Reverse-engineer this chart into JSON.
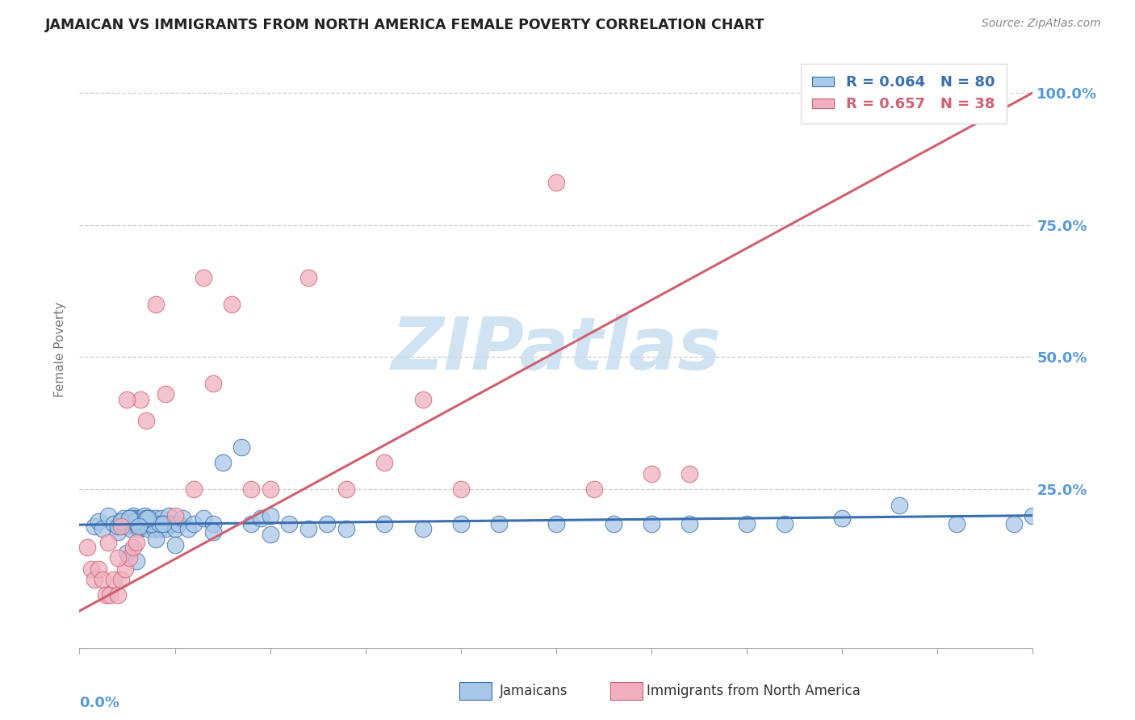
{
  "title": "JAMAICAN VS IMMIGRANTS FROM NORTH AMERICA FEMALE POVERTY CORRELATION CHART",
  "source_text": "Source: ZipAtlas.com",
  "xlim": [
    0,
    0.5
  ],
  "ylim": [
    -0.05,
    1.08
  ],
  "blue_R": 0.064,
  "blue_N": 80,
  "pink_R": 0.657,
  "pink_N": 38,
  "blue_color": "#a8c8e8",
  "pink_color": "#f0b0c0",
  "blue_line_color": "#3a6faf",
  "pink_line_color": "#d06070",
  "legend_label_blue": "Jamaicans",
  "legend_label_pink": "Immigrants from North America",
  "watermark": "ZIPatlas",
  "watermark_color": "#c8dff0",
  "grid_color": "#cccccc",
  "axis_label": "Female Poverty",
  "title_color": "#222222",
  "tick_label_color": "#5599dd",
  "blue_line_intercept": 0.183,
  "blue_line_slope": 0.035,
  "pink_line_intercept": 0.02,
  "pink_line_slope": 1.96,
  "blue_x": [
    0.008,
    0.01,
    0.012,
    0.015,
    0.018,
    0.02,
    0.022,
    0.023,
    0.025,
    0.026,
    0.027,
    0.028,
    0.029,
    0.03,
    0.031,
    0.032,
    0.033,
    0.034,
    0.035,
    0.036,
    0.037,
    0.038,
    0.039,
    0.04,
    0.041,
    0.042,
    0.043,
    0.044,
    0.045,
    0.047,
    0.048,
    0.05,
    0.052,
    0.054,
    0.057,
    0.06,
    0.065,
    0.07,
    0.075,
    0.085,
    0.09,
    0.095,
    0.1,
    0.11,
    0.12,
    0.13,
    0.14,
    0.16,
    0.18,
    0.2,
    0.22,
    0.25,
    0.28,
    0.3,
    0.32,
    0.35,
    0.37,
    0.4,
    0.43,
    0.46,
    0.49,
    0.5,
    0.025,
    0.03,
    0.04,
    0.05,
    0.07,
    0.1,
    0.038,
    0.042,
    0.033,
    0.027,
    0.029,
    0.035,
    0.036,
    0.02,
    0.022,
    0.026,
    0.031,
    0.044
  ],
  "blue_y": [
    0.18,
    0.19,
    0.175,
    0.2,
    0.185,
    0.17,
    0.19,
    0.195,
    0.18,
    0.185,
    0.175,
    0.2,
    0.195,
    0.185,
    0.175,
    0.195,
    0.18,
    0.2,
    0.185,
    0.175,
    0.195,
    0.185,
    0.175,
    0.195,
    0.185,
    0.175,
    0.195,
    0.185,
    0.175,
    0.2,
    0.185,
    0.175,
    0.185,
    0.195,
    0.175,
    0.185,
    0.195,
    0.185,
    0.3,
    0.33,
    0.185,
    0.195,
    0.2,
    0.185,
    0.175,
    0.185,
    0.175,
    0.185,
    0.175,
    0.185,
    0.185,
    0.185,
    0.185,
    0.185,
    0.185,
    0.185,
    0.185,
    0.195,
    0.22,
    0.185,
    0.185,
    0.2,
    0.13,
    0.115,
    0.155,
    0.145,
    0.17,
    0.165,
    0.185,
    0.185,
    0.19,
    0.195,
    0.19,
    0.195,
    0.195,
    0.18,
    0.19,
    0.195,
    0.18,
    0.185
  ],
  "pink_x": [
    0.004,
    0.006,
    0.008,
    0.01,
    0.012,
    0.014,
    0.016,
    0.018,
    0.02,
    0.022,
    0.024,
    0.026,
    0.028,
    0.03,
    0.032,
    0.035,
    0.04,
    0.045,
    0.05,
    0.06,
    0.065,
    0.07,
    0.08,
    0.09,
    0.1,
    0.12,
    0.14,
    0.16,
    0.18,
    0.2,
    0.25,
    0.27,
    0.3,
    0.32,
    0.015,
    0.02,
    0.022,
    0.025
  ],
  "pink_y": [
    0.14,
    0.1,
    0.08,
    0.1,
    0.08,
    0.05,
    0.05,
    0.08,
    0.05,
    0.08,
    0.1,
    0.12,
    0.14,
    0.15,
    0.42,
    0.38,
    0.6,
    0.43,
    0.2,
    0.25,
    0.65,
    0.45,
    0.6,
    0.25,
    0.25,
    0.65,
    0.25,
    0.3,
    0.42,
    0.25,
    0.83,
    0.25,
    0.28,
    0.28,
    0.15,
    0.12,
    0.18,
    0.42
  ]
}
